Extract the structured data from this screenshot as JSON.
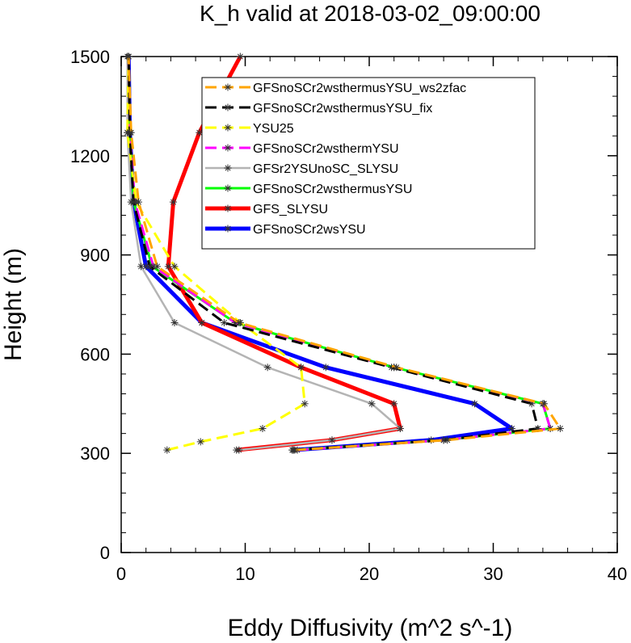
{
  "chart_data": {
    "type": "line",
    "title": "K_h valid at 2018-03-02_09:00:00",
    "xlabel": "Eddy Diffusivity (m^2 s^-1)",
    "ylabel": "Height (m)",
    "xlim": [
      0,
      40
    ],
    "ylim": [
      0,
      1500
    ],
    "xticks": [
      0,
      10,
      20,
      30,
      40
    ],
    "yticks": [
      0,
      300,
      600,
      900,
      1200,
      1500
    ],
    "xtick_labels": [
      "0",
      "10",
      "20",
      "30",
      "40"
    ],
    "ytick_labels": [
      "0",
      "300",
      "600",
      "900",
      "1200",
      "1500"
    ],
    "legend_position": "top-right",
    "series": [
      {
        "name": "GFSnoSCr2wsYSU",
        "color": "#0000ff",
        "dash": "solid",
        "points": [
          [
            13.9,
            310
          ],
          [
            25.0,
            340
          ],
          [
            31.5,
            375
          ],
          [
            28.5,
            450
          ],
          [
            16.5,
            560
          ],
          [
            6.5,
            695
          ],
          [
            2.0,
            865
          ],
          [
            1.0,
            1060
          ],
          [
            0.7,
            1270
          ],
          [
            0.6,
            1500
          ]
        ]
      },
      {
        "name": "GFS_SLYSU",
        "color": "#ff0000",
        "dash": "solid",
        "points": [
          [
            9.3,
            310
          ],
          [
            17.0,
            340
          ],
          [
            22.5,
            375
          ],
          [
            22.0,
            450
          ],
          [
            14.5,
            560
          ],
          [
            6.5,
            695
          ],
          [
            3.8,
            865
          ],
          [
            4.2,
            1060
          ],
          [
            6.3,
            1270
          ],
          [
            9.6,
            1500
          ]
        ]
      },
      {
        "name": "GFSnoSCr2wsthermusYSU",
        "color": "#00ff00",
        "dash": "solid",
        "points": [
          [
            13.8,
            310
          ],
          [
            26.0,
            340
          ],
          [
            34.6,
            375
          ],
          [
            34.0,
            450
          ],
          [
            22.0,
            560
          ],
          [
            9.2,
            695
          ],
          [
            2.5,
            865
          ],
          [
            1.0,
            1060
          ],
          [
            0.7,
            1270
          ],
          [
            0.6,
            1500
          ]
        ]
      },
      {
        "name": "GFSr2YSUnoSC_SLYSU",
        "color": "#b4b4b4",
        "dash": "solid",
        "points": [
          [
            9.5,
            310
          ],
          [
            17.0,
            340
          ],
          [
            22.5,
            375
          ],
          [
            20.2,
            450
          ],
          [
            11.8,
            560
          ],
          [
            4.3,
            695
          ],
          [
            1.6,
            865
          ],
          [
            0.8,
            1060
          ],
          [
            0.5,
            1270
          ],
          [
            0.5,
            1500
          ]
        ]
      },
      {
        "name": "GFSnoSCr2wsthermYSU",
        "color": "#ff00ff",
        "dash": "dash",
        "points": [
          [
            14.2,
            310
          ],
          [
            26.0,
            340
          ],
          [
            34.6,
            375
          ],
          [
            34.0,
            450
          ],
          [
            22.0,
            560
          ],
          [
            9.2,
            695
          ],
          [
            2.6,
            865
          ],
          [
            1.1,
            1060
          ],
          [
            0.7,
            1270
          ],
          [
            0.6,
            1500
          ]
        ]
      },
      {
        "name": "YSU25",
        "color": "#ffff00",
        "dash": "dash",
        "points": [
          [
            3.7,
            310
          ],
          [
            6.4,
            335
          ],
          [
            11.4,
            375
          ],
          [
            14.8,
            450
          ],
          [
            14.5,
            560
          ],
          [
            9.6,
            695
          ],
          [
            4.3,
            865
          ],
          [
            1.2,
            1060
          ],
          [
            0.5,
            1270
          ],
          [
            0.6,
            1500
          ]
        ]
      },
      {
        "name": "GFSnoSCr2wsthermusYSU_fix",
        "color": "#000000",
        "dash": "dash",
        "points": [
          [
            13.8,
            310
          ],
          [
            26.0,
            340
          ],
          [
            33.6,
            375
          ],
          [
            33.1,
            450
          ],
          [
            21.8,
            560
          ],
          [
            8.3,
            695
          ],
          [
            2.3,
            865
          ],
          [
            1.0,
            1060
          ],
          [
            0.7,
            1270
          ],
          [
            0.6,
            1500
          ]
        ]
      },
      {
        "name": "GFSnoSCr2wsthermusYSU_ws2zfac",
        "color": "#ffa500",
        "dash": "dash",
        "points": [
          [
            14.0,
            310
          ],
          [
            26.3,
            340
          ],
          [
            35.4,
            375
          ],
          [
            34.1,
            450
          ],
          [
            22.2,
            560
          ],
          [
            9.5,
            695
          ],
          [
            2.9,
            865
          ],
          [
            1.4,
            1060
          ],
          [
            0.8,
            1270
          ],
          [
            0.6,
            1500
          ]
        ]
      }
    ],
    "legend_order": [
      "GFSnoSCr2wsthermusYSU_ws2zfac",
      "GFSnoSCr2wsthermusYSU_fix",
      "YSU25",
      "GFSnoSCr2wsthermYSU",
      "GFSr2YSUnoSC_SLYSU",
      "GFSnoSCr2wsthermusYSU",
      "GFS_SLYSU",
      "GFSnoSCr2wsYSU"
    ]
  }
}
